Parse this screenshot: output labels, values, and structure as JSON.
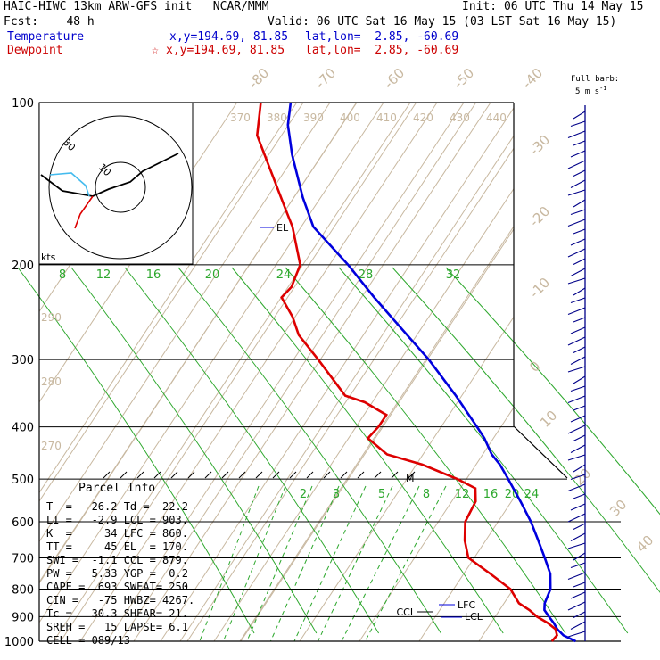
{
  "header": {
    "line1_left": "HAIC-HIWC 13km ARW-GFS init   NCAR/MMM",
    "line1_right": "Init: 06 UTC Thu 14 May 15",
    "fcst": "Fcst:    48 h",
    "valid": "Valid: 06 UTC Sat 16 May 15 (03 LST Sat 16 May 15)",
    "temperature_label": "Temperature",
    "temperature_xy": "x,y=194.69, 81.85",
    "temperature_latlon": "lat,lon=  2.85, -60.69",
    "dewpoint_label": "Dewpoint",
    "dewpoint_mark": "☆",
    "dewpoint_xy": "x,y=194.69, 81.85",
    "dewpoint_latlon": "lat,lon=  2.85, -60.69",
    "barb_legend_1": "Full barb:",
    "barb_legend_2": "5 m s",
    "barb_legend_exp": "-1"
  },
  "parcel_info": {
    "title": "Parcel Info",
    "rows": [
      "T  =   26.2 Td =  22.2",
      "LI =   -2.9 LCL = 903.",
      "K  =     34 LFC = 860.",
      "TT =     45 EL  = 170.",
      "SWI =  -1.1 CCL = 879.",
      "PW =   5.33 YGP =  0.2",
      "CAPE =  693 SWEAT= 250",
      "CIN =   -75 HWBZ= 4267.",
      "Tc =   30.3 SHEAR= 21.",
      "SREH =   15 LAPSE= 6.1",
      "CELL = 089/13"
    ]
  },
  "annotations": {
    "el": "EL",
    "lfc": "LFC",
    "lcl": "LCL",
    "ccl": "CCL",
    "m": "M",
    "hodo_units": "kts",
    "hodo_ring_30": "30",
    "hodo_ring_10": "10"
  },
  "colors": {
    "temperature": "#0000dd",
    "dewpoint": "#dd0000",
    "isotherm": "#c8b8a0",
    "mixing_ratio": "#2ea82e",
    "barb": "#000088",
    "isobar": "#000000"
  },
  "chart_data": {
    "type": "skew-T log-P",
    "pressure_levels_hpa": [
      100,
      200,
      300,
      400,
      500,
      600,
      700,
      800,
      900,
      1000
    ],
    "isotherm_labels_c": [
      -80,
      -70,
      -60,
      -50,
      -40,
      -30,
      -20,
      -10,
      0,
      10,
      20,
      30,
      40
    ],
    "theta_labels_k": [
      370,
      380,
      390,
      400,
      410,
      420,
      430,
      440
    ],
    "theta_labels_left_k": [
      290,
      280,
      270
    ],
    "mixing_ratio_labels_upper": [
      8,
      12,
      16,
      20,
      24,
      28,
      32
    ],
    "mixing_ratio_labels_lower": [
      2,
      3,
      5,
      8,
      12,
      16,
      20,
      24
    ],
    "temperature_profile": {
      "pressure_hpa": [
        1000,
        975,
        950,
        925,
        900,
        875,
        850,
        800,
        750,
        700,
        650,
        600,
        550,
        500,
        470,
        450,
        420,
        400,
        350,
        300,
        250,
        230,
        200,
        170,
        150,
        125,
        110,
        100
      ],
      "temperature_c": [
        26.2,
        23.5,
        21.8,
        20.5,
        19.0,
        17.5,
        16.8,
        16.2,
        14.5,
        11.8,
        8.8,
        5.5,
        1.5,
        -3.0,
        -6.0,
        -8.5,
        -11.5,
        -14.0,
        -21.0,
        -29.5,
        -40.5,
        -45.5,
        -53.5,
        -63.5,
        -68.5,
        -75.0,
        -79.0,
        -81.0
      ]
    },
    "dewpoint_profile": {
      "pressure_hpa": [
        1000,
        975,
        950,
        925,
        900,
        875,
        850,
        800,
        750,
        700,
        650,
        600,
        550,
        520,
        500,
        470,
        450,
        420,
        400,
        380,
        360,
        350,
        300,
        270,
        250,
        230,
        220,
        200,
        170,
        160,
        130,
        115,
        100
      ],
      "dewpoint_c": [
        22.2,
        22.4,
        21.5,
        19.5,
        17.0,
        15.0,
        12.5,
        9.5,
        4.5,
        -1.0,
        -3.5,
        -5.5,
        -6.0,
        -7.5,
        -11.5,
        -19.0,
        -26.0,
        -31.0,
        -30.5,
        -30.5,
        -35.5,
        -39.5,
        -48.0,
        -54.0,
        -57.0,
        -61.0,
        -60.5,
        -61.5,
        -67.0,
        -69.5,
        -78.0,
        -83.0,
        -86.0
      ]
    }
  }
}
